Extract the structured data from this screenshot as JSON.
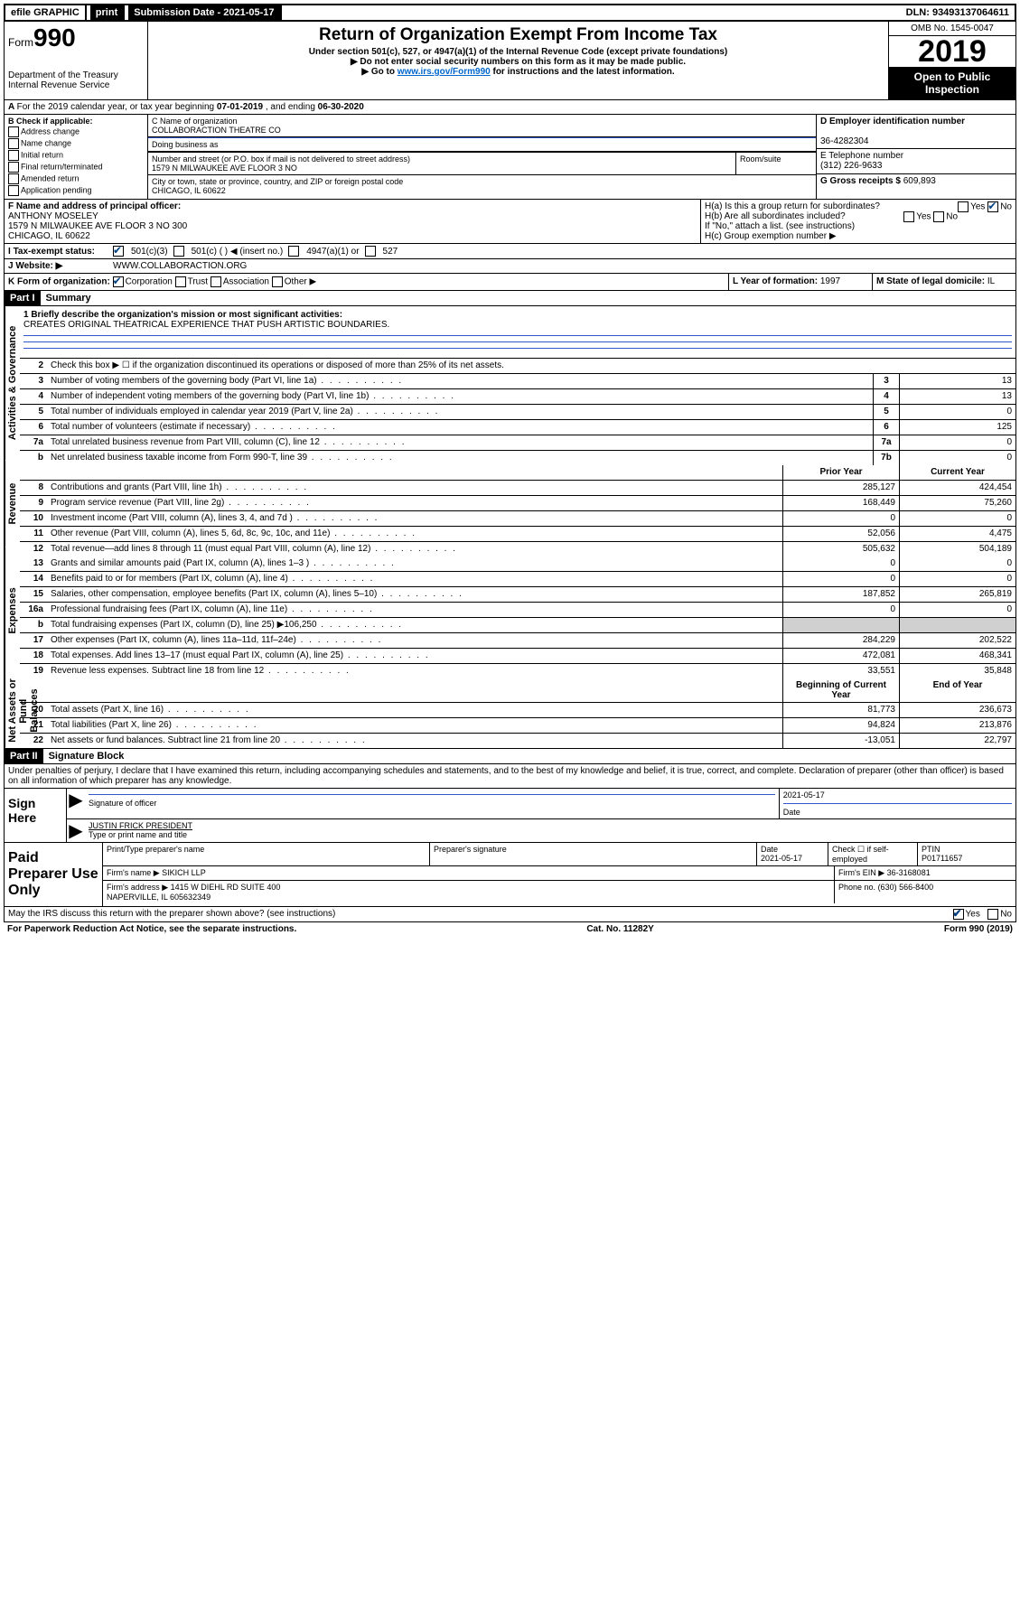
{
  "topbar": {
    "efile": "efile GRAPHIC",
    "print": "print",
    "submission": "Submission Date - 2021-05-17",
    "dln": "DLN: 93493137064611"
  },
  "header": {
    "form_prefix": "Form",
    "form_num": "990",
    "dept": "Department of the Treasury\nInternal Revenue Service",
    "title": "Return of Organization Exempt From Income Tax",
    "sub1": "Under section 501(c), 527, or 4947(a)(1) of the Internal Revenue Code (except private foundations)",
    "sub2": "▶ Do not enter social security numbers on this form as it may be made public.",
    "sub3_pre": "▶ Go to ",
    "sub3_link": "www.irs.gov/Form990",
    "sub3_post": " for instructions and the latest information.",
    "omb": "OMB No. 1545-0047",
    "year": "2019",
    "open": "Open to Public Inspection"
  },
  "period": {
    "label": "For the 2019 calendar year, or tax year beginning ",
    "begin": "07-01-2019",
    "mid": " , and ending ",
    "end": "06-30-2020"
  },
  "boxB": {
    "hdr": "B Check if applicable:",
    "opts": [
      "Address change",
      "Name change",
      "Initial return",
      "Final return/terminated",
      "Amended return",
      "Application pending"
    ]
  },
  "boxC": {
    "name_lbl": "C Name of organization",
    "name": "COLLABORACTION THEATRE CO",
    "dba_lbl": "Doing business as",
    "street_lbl": "Number and street (or P.O. box if mail is not delivered to street address)",
    "street": "1579 N MILWAUKEE AVE FLOOR 3 NO",
    "room_lbl": "Room/suite",
    "city_lbl": "City or town, state or province, country, and ZIP or foreign postal code",
    "city": "CHICAGO, IL  60622"
  },
  "boxD": {
    "lbl": "D Employer identification number",
    "val": "36-4282304"
  },
  "boxE": {
    "lbl": "E Telephone number",
    "val": "(312) 226-9633"
  },
  "boxG": {
    "lbl": "G Gross receipts $",
    "val": "609,893"
  },
  "boxF": {
    "lbl": "F Name and address of principal officer:",
    "name": "ANTHONY MOSELEY",
    "addr": "1579 N MILWAUKEE AVE FLOOR 3 NO 300\nCHICAGO, IL  60622"
  },
  "boxH": {
    "a": "H(a)  Is this a group return for subordinates?",
    "b": "H(b)  Are all subordinates included?",
    "b_note": "If \"No,\" attach a list. (see instructions)",
    "c": "H(c)  Group exemption number ▶",
    "yes": "Yes",
    "no": "No"
  },
  "boxI": {
    "lbl": "Tax-exempt status:",
    "opts": [
      "501(c)(3)",
      "501(c) (   ) ◀ (insert no.)",
      "4947(a)(1) or",
      "527"
    ]
  },
  "boxJ": {
    "lbl": "Website: ▶",
    "val": "WWW.COLLABORACTION.ORG"
  },
  "boxK": {
    "lbl": "K Form of organization:",
    "opts": [
      "Corporation",
      "Trust",
      "Association",
      "Other ▶"
    ]
  },
  "boxL": {
    "lbl": "L Year of formation:",
    "val": "1997"
  },
  "boxM": {
    "lbl": "M State of legal domicile:",
    "val": "IL"
  },
  "part1": {
    "hdr": "Part I",
    "title": "Summary"
  },
  "mission": {
    "lbl": "1  Briefly describe the organization's mission or most significant activities:",
    "text": "CREATES ORIGINAL THEATRICAL EXPERIENCE THAT PUSH ARTISTIC BOUNDARIES."
  },
  "line2": "Check this box ▶ ☐  if the organization discontinued its operations or disposed of more than 25% of its net assets.",
  "sections": {
    "gov": "Activities & Governance",
    "rev": "Revenue",
    "exp": "Expenses",
    "net": "Net Assets or Fund Balances"
  },
  "cols": {
    "prior": "Prior Year",
    "current": "Current Year",
    "begin": "Beginning of Current Year",
    "end": "End of Year"
  },
  "lines_gov": [
    {
      "n": "3",
      "d": "Number of voting members of the governing body (Part VI, line 1a)",
      "box": "3",
      "v": "13"
    },
    {
      "n": "4",
      "d": "Number of independent voting members of the governing body (Part VI, line 1b)",
      "box": "4",
      "v": "13"
    },
    {
      "n": "5",
      "d": "Total number of individuals employed in calendar year 2019 (Part V, line 2a)",
      "box": "5",
      "v": "0"
    },
    {
      "n": "6",
      "d": "Total number of volunteers (estimate if necessary)",
      "box": "6",
      "v": "125"
    },
    {
      "n": "7a",
      "d": "Total unrelated business revenue from Part VIII, column (C), line 12",
      "box": "7a",
      "v": "0"
    },
    {
      "n": "b",
      "d": "Net unrelated business taxable income from Form 990-T, line 39",
      "box": "7b",
      "v": "0"
    }
  ],
  "lines_rev": [
    {
      "n": "8",
      "d": "Contributions and grants (Part VIII, line 1h)",
      "p": "285,127",
      "c": "424,454"
    },
    {
      "n": "9",
      "d": "Program service revenue (Part VIII, line 2g)",
      "p": "168,449",
      "c": "75,260"
    },
    {
      "n": "10",
      "d": "Investment income (Part VIII, column (A), lines 3, 4, and 7d )",
      "p": "0",
      "c": "0"
    },
    {
      "n": "11",
      "d": "Other revenue (Part VIII, column (A), lines 5, 6d, 8c, 9c, 10c, and 11e)",
      "p": "52,056",
      "c": "4,475"
    },
    {
      "n": "12",
      "d": "Total revenue—add lines 8 through 11 (must equal Part VIII, column (A), line 12)",
      "p": "505,632",
      "c": "504,189"
    }
  ],
  "lines_exp": [
    {
      "n": "13",
      "d": "Grants and similar amounts paid (Part IX, column (A), lines 1–3 )",
      "p": "0",
      "c": "0"
    },
    {
      "n": "14",
      "d": "Benefits paid to or for members (Part IX, column (A), line 4)",
      "p": "0",
      "c": "0"
    },
    {
      "n": "15",
      "d": "Salaries, other compensation, employee benefits (Part IX, column (A), lines 5–10)",
      "p": "187,852",
      "c": "265,819"
    },
    {
      "n": "16a",
      "d": "Professional fundraising fees (Part IX, column (A), line 11e)",
      "p": "0",
      "c": "0"
    },
    {
      "n": "b",
      "d": "Total fundraising expenses (Part IX, column (D), line 25) ▶106,250",
      "p": "",
      "c": "",
      "shade": true
    },
    {
      "n": "17",
      "d": "Other expenses (Part IX, column (A), lines 11a–11d, 11f–24e)",
      "p": "284,229",
      "c": "202,522"
    },
    {
      "n": "18",
      "d": "Total expenses. Add lines 13–17 (must equal Part IX, column (A), line 25)",
      "p": "472,081",
      "c": "468,341"
    },
    {
      "n": "19",
      "d": "Revenue less expenses. Subtract line 18 from line 12",
      "p": "33,551",
      "c": "35,848"
    }
  ],
  "lines_net": [
    {
      "n": "20",
      "d": "Total assets (Part X, line 16)",
      "p": "81,773",
      "c": "236,673"
    },
    {
      "n": "21",
      "d": "Total liabilities (Part X, line 26)",
      "p": "94,824",
      "c": "213,876"
    },
    {
      "n": "22",
      "d": "Net assets or fund balances. Subtract line 21 from line 20",
      "p": "-13,051",
      "c": "22,797"
    }
  ],
  "part2": {
    "hdr": "Part II",
    "title": "Signature Block"
  },
  "perjury": "Under penalties of perjury, I declare that I have examined this return, including accompanying schedules and statements, and to the best of my knowledge and belief, it is true, correct, and complete. Declaration of preparer (other than officer) is based on all information of which preparer has any knowledge.",
  "sign": {
    "here": "Sign Here",
    "sig_lbl": "Signature of officer",
    "date_lbl": "Date",
    "date": "2021-05-17",
    "name": "JUSTIN FRICK  PRESIDENT",
    "name_lbl": "Type or print name and title"
  },
  "paid": {
    "lbl": "Paid Preparer Use Only",
    "h1": "Print/Type preparer's name",
    "h2": "Preparer's signature",
    "h3": "Date",
    "date": "2021-05-17",
    "h4": "Check ☐ if self-employed",
    "h5": "PTIN",
    "ptin": "P01711657",
    "firm_lbl": "Firm's name    ▶",
    "firm": "SIKICH LLP",
    "ein_lbl": "Firm's EIN ▶",
    "ein": "36-3168081",
    "addr_lbl": "Firm's address ▶",
    "addr": "1415 W DIEHL RD SUITE 400\nNAPERVILLE, IL  605632349",
    "phone_lbl": "Phone no.",
    "phone": "(630) 566-8400"
  },
  "discuss": "May the IRS discuss this return with the preparer shown above? (see instructions)",
  "footer": {
    "pra": "For Paperwork Reduction Act Notice, see the separate instructions.",
    "cat": "Cat. No. 11282Y",
    "form": "Form 990 (2019)"
  }
}
